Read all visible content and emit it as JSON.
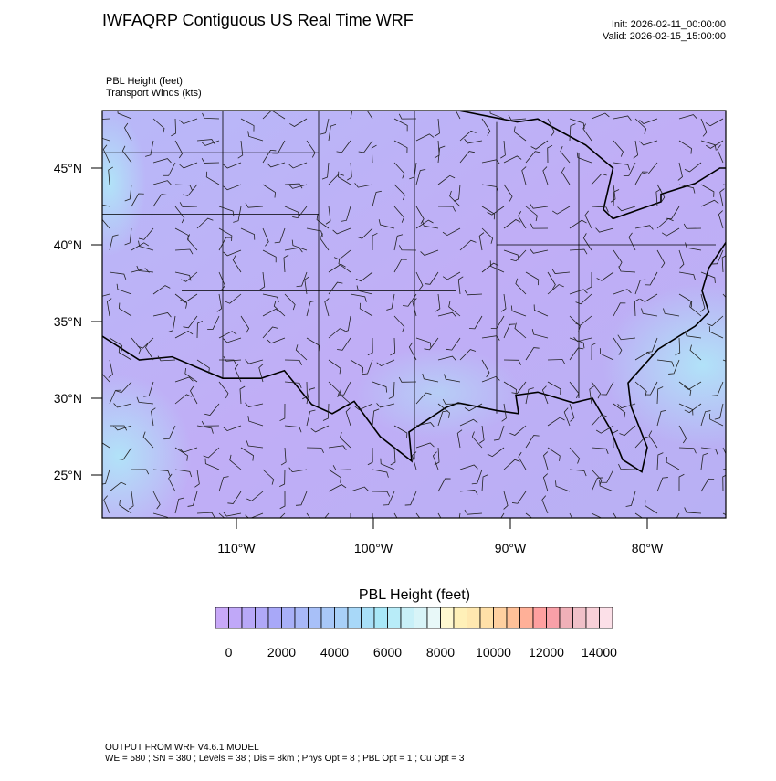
{
  "header": {
    "title": "IWFAQRP Contiguous US Real Time WRF",
    "init": "Init: 2026-02-11_00:00:00",
    "valid": "Valid: 2026-02-15_15:00:00"
  },
  "fields": [
    "PBL Height   (feet)",
    "Transport Winds   (kts)"
  ],
  "map": {
    "lat_labels": [
      "45°N",
      "40°N",
      "35°N",
      "30°N",
      "25°N"
    ],
    "lon_labels": [
      "110°W",
      "100°W",
      "90°W",
      "80°W"
    ]
  },
  "colorbar": {
    "title": "PBL Height  (feet)",
    "labels": [
      "0",
      "2000",
      "4000",
      "6000",
      "8000",
      "10000",
      "12000",
      "14000"
    ],
    "colors": [
      "#c8a8f8",
      "#c0a8f8",
      "#b8a8f8",
      "#b0a8f8",
      "#a8a8f8",
      "#a8b0f8",
      "#a8b8f8",
      "#a8c0f8",
      "#a8c8f8",
      "#a8d0f8",
      "#a8d8f8",
      "#a8e0f8",
      "#a8e8f8",
      "#b8ecf8",
      "#c8f0f8",
      "#d8f4f8",
      "#e8f8f8",
      "#fff8d0",
      "#fff0b8",
      "#ffe8b0",
      "#ffe0a8",
      "#ffd0a0",
      "#ffc098",
      "#ffb098",
      "#ffa0a0",
      "#f8a0a8",
      "#f0b0b8",
      "#f0c0c8",
      "#f8d0d8",
      "#fce0e8"
    ]
  },
  "footer": [
    "OUTPUT FROM WRF V4.6.1 MODEL",
    "WE = 580 ; SN = 380 ; Levels = 38 ; Dis = 8km ; Phys Opt = 8 ; PBL Opt = 1 ; Cu Opt = 3"
  ]
}
